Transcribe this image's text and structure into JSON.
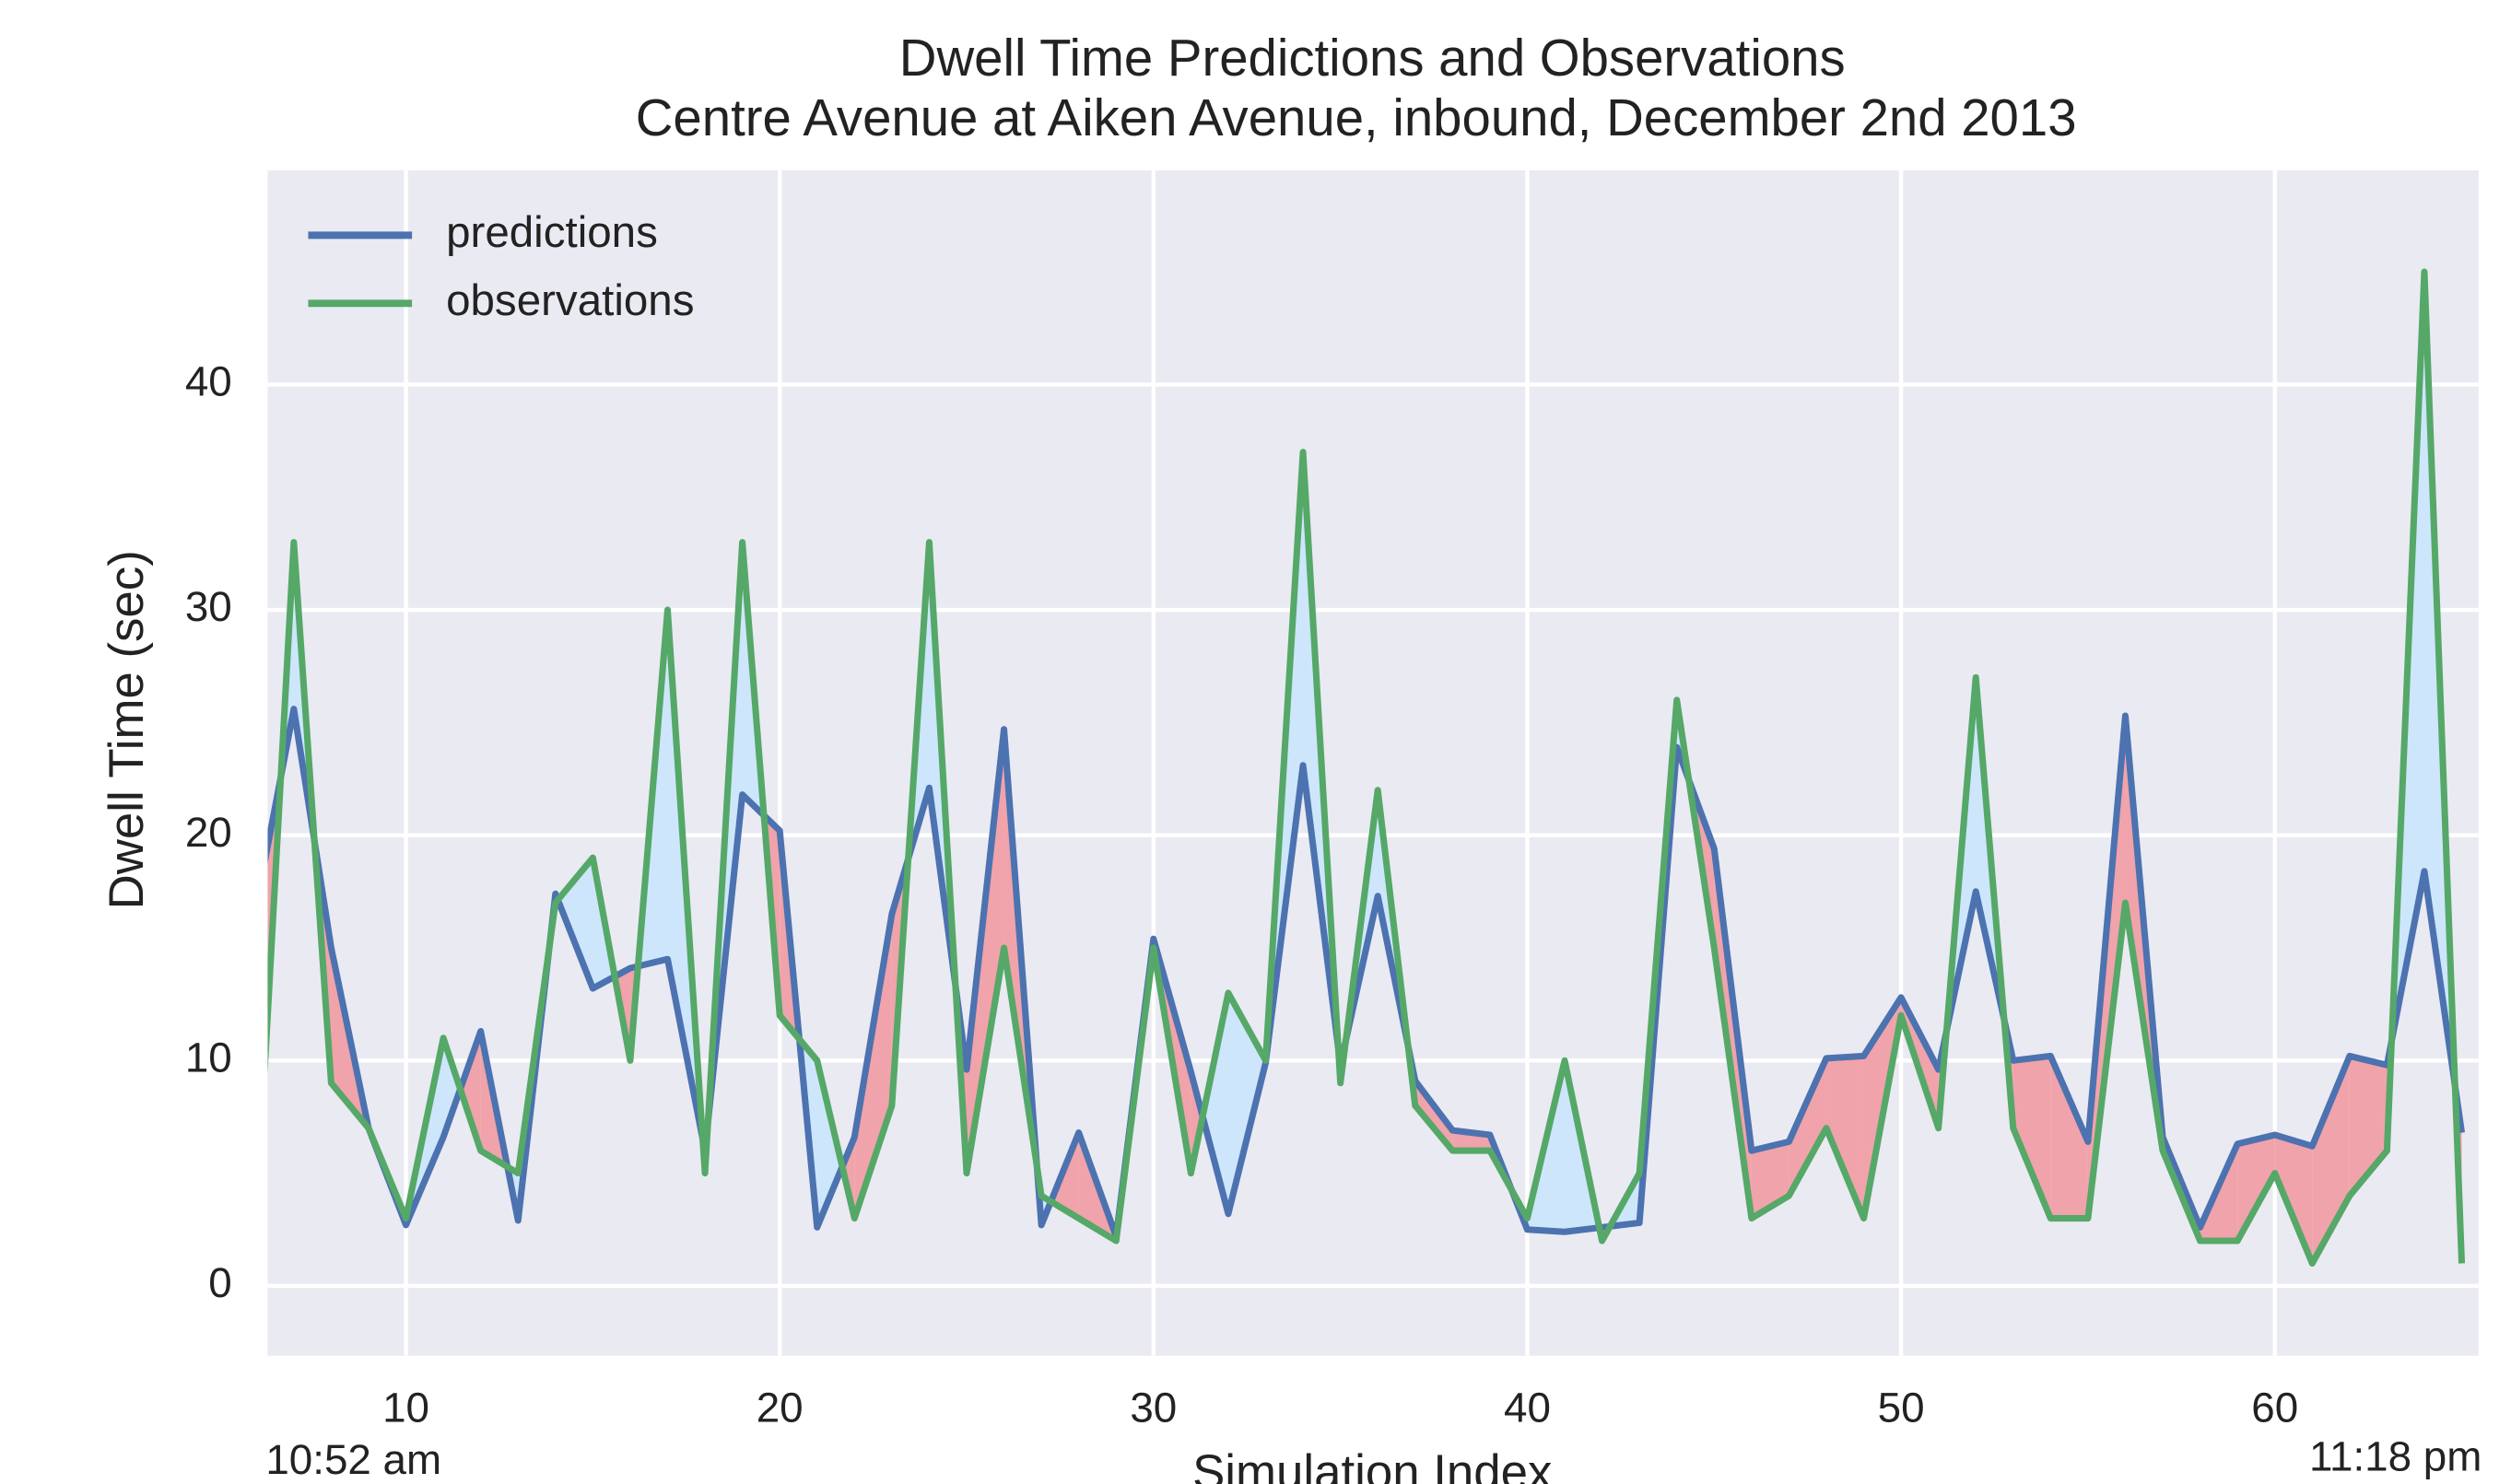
{
  "chart_data": {
    "type": "line",
    "title": "Dwell Time Predictions and Observations",
    "subtitle": "Centre Avenue at Aiken Avenue, inbound, December 2nd 2013",
    "x_label": "Simulation Index",
    "y_label": "Dwell Time (sec)",
    "annotations": [
      "10:52 am",
      "11:18 pm"
    ],
    "x": [
      6,
      7,
      8,
      9,
      10,
      11,
      12,
      13,
      14,
      15,
      16,
      17,
      18,
      19,
      20,
      21,
      22,
      23,
      24,
      25,
      26,
      27,
      28,
      29,
      30,
      31,
      32,
      33,
      34,
      35,
      36,
      37,
      38,
      39,
      40,
      41,
      42,
      43,
      44,
      45,
      46,
      47,
      48,
      49,
      50,
      51,
      52,
      53,
      54,
      55,
      56,
      57,
      58,
      59,
      60,
      61,
      62,
      63,
      64,
      65
    ],
    "series": [
      {
        "name": "predictions",
        "color": "#4c72b0",
        "values": [
          16.9,
          25.6,
          15,
          7,
          2.7,
          6.6,
          11.3,
          2.9,
          17.4,
          13.2,
          14.1,
          14.5,
          6,
          21.8,
          20.2,
          2.6,
          6.6,
          16.5,
          22.1,
          9.6,
          24.7,
          2.7,
          6.8,
          2.2,
          15.4,
          9.5,
          3.2,
          9.9,
          23.1,
          9.8,
          17.3,
          9.1,
          6.9,
          6.7,
          2.5,
          2.4,
          2.6,
          2.8,
          23.9,
          19.4,
          6,
          6.4,
          10.1,
          10.2,
          12.8,
          9.6,
          17.5,
          10,
          10.2,
          6.4,
          25.3,
          6.6,
          2.6,
          6.3,
          6.7,
          6.2,
          10.2,
          9.8,
          18.4,
          6.8
        ]
      },
      {
        "name": "observations",
        "color": "#55a868",
        "values": [
          3,
          33,
          9,
          7,
          3,
          11,
          6,
          5,
          17,
          19,
          10,
          30,
          5,
          33,
          12,
          10,
          3,
          8,
          33,
          5,
          15,
          4,
          3,
          2,
          15,
          5,
          13,
          10,
          37,
          9,
          22,
          8,
          6,
          6,
          3,
          10,
          2,
          5,
          26,
          15,
          3,
          4,
          7,
          3,
          12,
          7,
          27,
          7,
          3,
          3,
          17,
          6,
          2,
          2,
          5,
          1,
          4,
          6,
          45,
          1
        ]
      }
    ],
    "fill_between": {
      "above_color": "#f0a3aa",
      "below_color": "#cde6fb"
    },
    "xlim": [
      6.3,
      65.45
    ],
    "xticks": [
      10,
      20,
      30,
      40,
      50,
      60
    ],
    "ylim": [
      -3.1,
      49.5
    ],
    "yticks": [
      0,
      10,
      20,
      30,
      40
    ],
    "grid": true,
    "legend": "upper-left",
    "background": "#eaeaf2"
  }
}
